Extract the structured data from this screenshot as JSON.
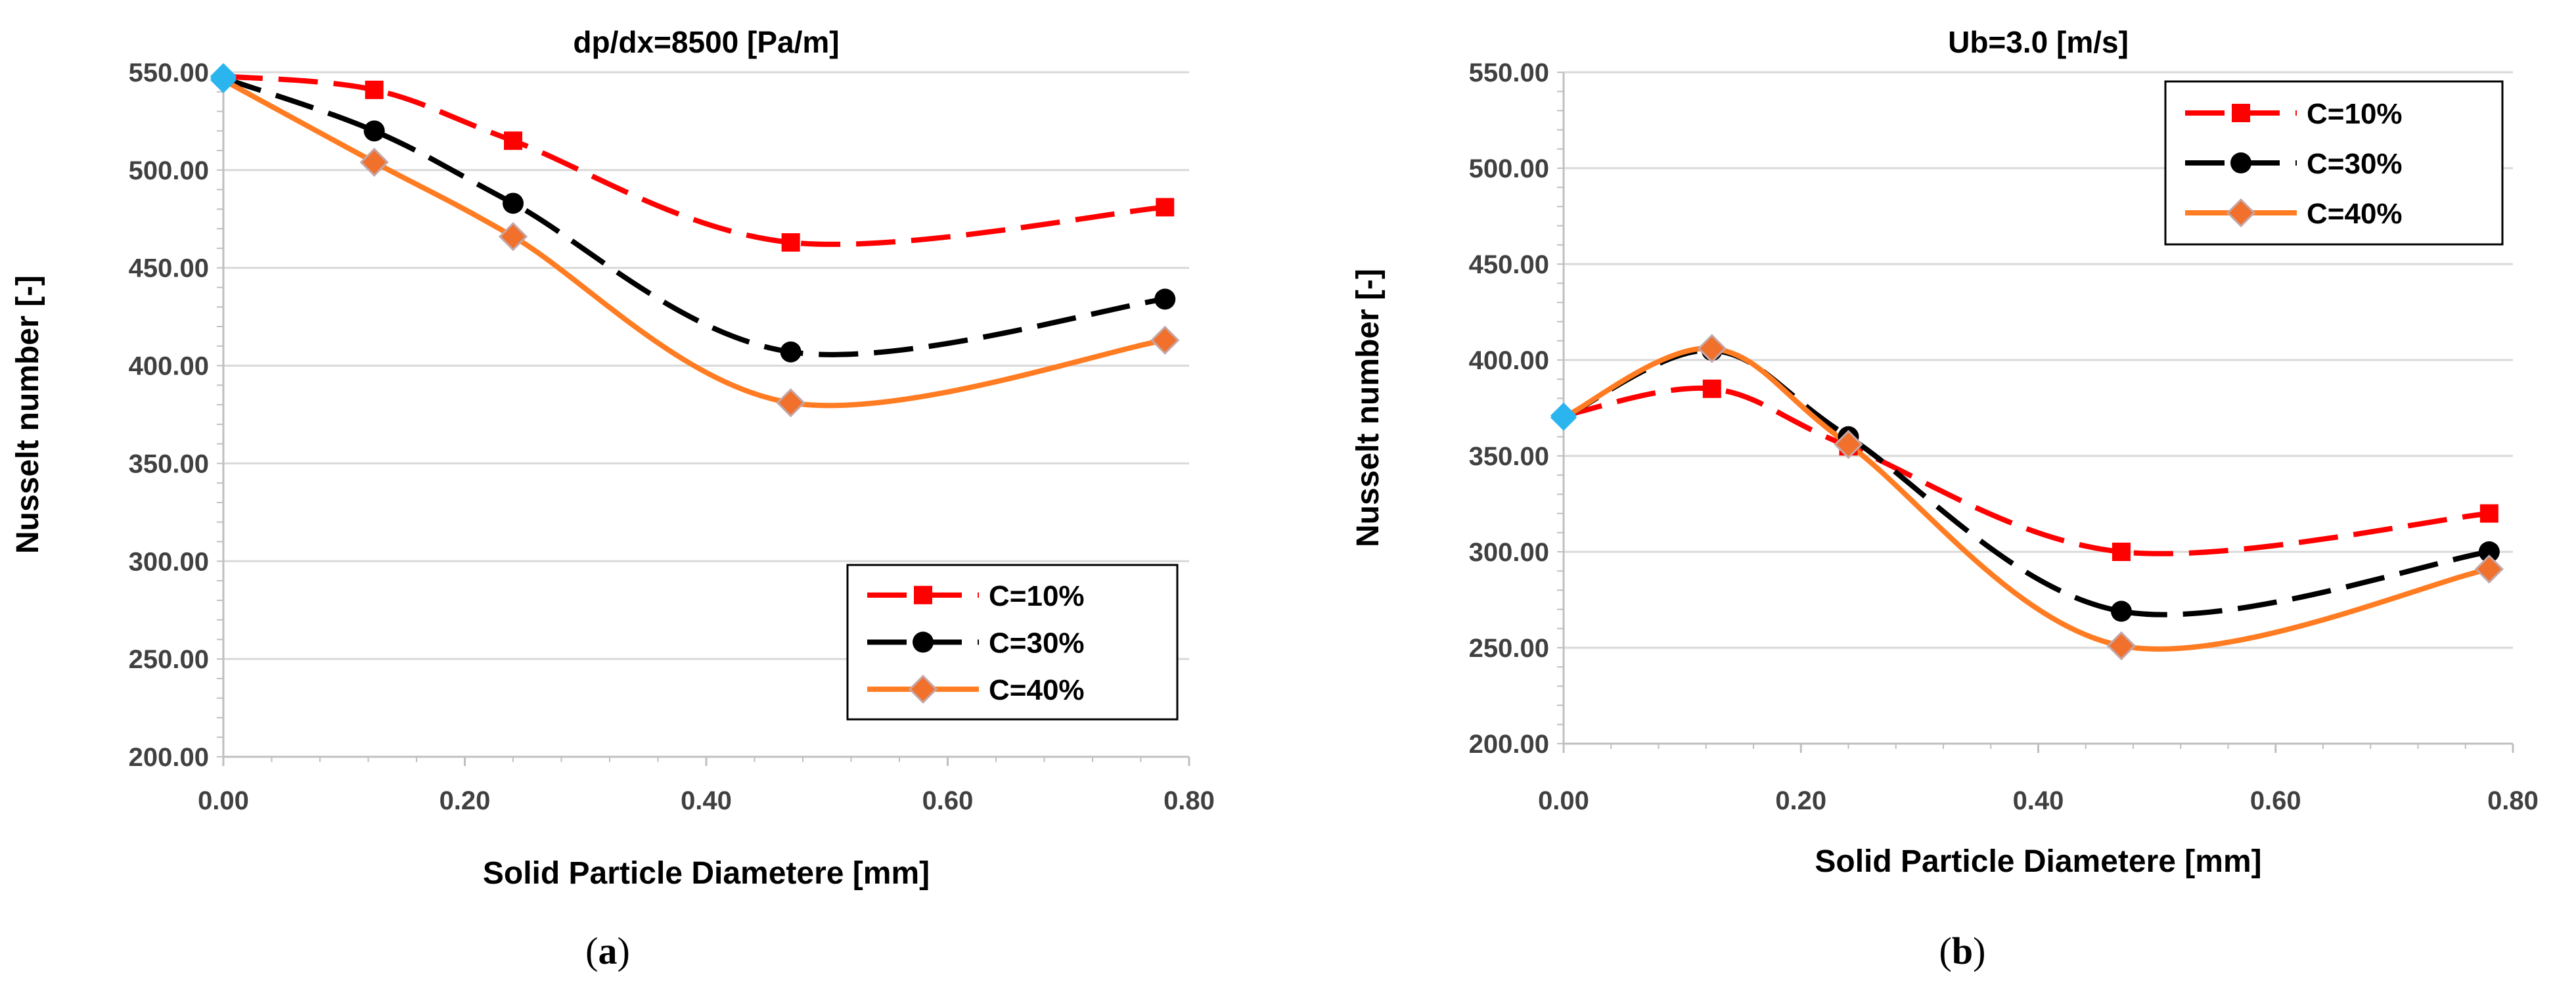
{
  "chart_data": [
    {
      "type": "line",
      "title": "dp/dx=8500 [Pa/m]",
      "xlabel": "Solid Particle Diametere [mm]",
      "ylabel": "Nusselt number [-]",
      "xlim": [
        0,
        0.8
      ],
      "ylim": [
        200,
        550
      ],
      "xticks": [
        "0.00",
        "0.20",
        "0.40",
        "0.60",
        "0.80"
      ],
      "yticks": [
        "200.00",
        "250.00",
        "300.00",
        "350.00",
        "400.00",
        "450.00",
        "500.00",
        "550.00"
      ],
      "x": [
        0,
        0.125,
        0.24,
        0.47,
        0.78
      ],
      "legend_position": "bottom-right",
      "series": [
        {
          "name": "C=10%",
          "values": [
            548,
            541,
            515,
            463,
            481
          ],
          "color": "#ff0000",
          "marker": "square",
          "dash": "long-dash"
        },
        {
          "name": "C=30%",
          "values": [
            547,
            520,
            483,
            407,
            434
          ],
          "color": "#000000",
          "marker": "circle",
          "dash": "long-dash"
        },
        {
          "name": "C=40%",
          "values": [
            546,
            504,
            466,
            381,
            413
          ],
          "color": "#ff7c22",
          "marker": "diamond",
          "dash": "solid"
        }
      ],
      "caption_open": "(",
      "caption_letter": "a",
      "caption_close": ")"
    },
    {
      "type": "line",
      "title": "Ub=3.0 [m/s]",
      "xlabel": "Solid Particle Diametere [mm]",
      "ylabel": "Nusselt number [-]",
      "xlim": [
        0,
        0.8
      ],
      "ylim": [
        200,
        550
      ],
      "xticks": [
        "0.00",
        "0.20",
        "0.40",
        "0.60",
        "0.80"
      ],
      "yticks": [
        "200.00",
        "250.00",
        "300.00",
        "350.00",
        "400.00",
        "450.00",
        "500.00",
        "550.00"
      ],
      "x": [
        0,
        0.125,
        0.24,
        0.47,
        0.78
      ],
      "legend_position": "top-right",
      "series": [
        {
          "name": "C=10%",
          "values": [
            371,
            385,
            355,
            300,
            320
          ],
          "color": "#ff0000",
          "marker": "square",
          "dash": "long-dash"
        },
        {
          "name": "C=30%",
          "values": [
            370,
            405,
            360,
            269,
            300
          ],
          "color": "#000000",
          "marker": "circle",
          "dash": "long-dash"
        },
        {
          "name": "C=40%",
          "values": [
            370,
            406,
            356,
            251,
            291
          ],
          "color": "#ff7c22",
          "marker": "diamond",
          "dash": "solid"
        }
      ],
      "caption_open": "(",
      "caption_letter": "b",
      "caption_close": ")"
    }
  ],
  "colors": {
    "grid": "#d9d9d9",
    "axis": "#bfbfbf",
    "first_point": "#2bb5ef",
    "diamond_fill": "#f0702c",
    "diamond_stroke": "#c4a6a6"
  }
}
